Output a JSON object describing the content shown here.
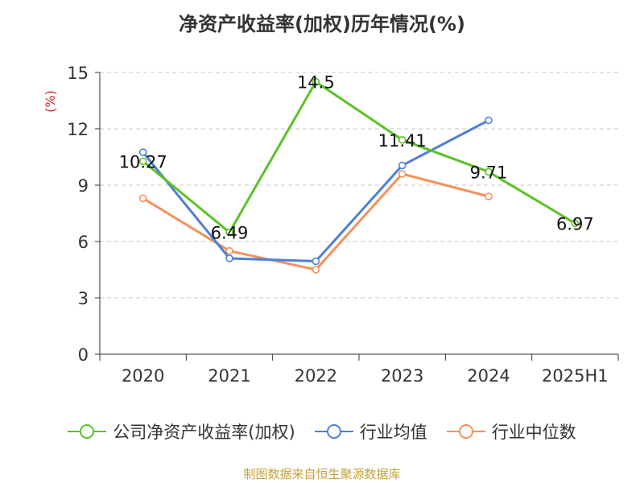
{
  "chart_data": {
    "type": "line",
    "title": "净资产收益率(加权)历年情况(%)",
    "ylabel": "(%)",
    "xlabel": "",
    "categories": [
      "2020",
      "2021",
      "2022",
      "2023",
      "2024",
      "2025H1"
    ],
    "yticks": [
      "0",
      "3",
      "6",
      "9",
      "12",
      "15"
    ],
    "ylim": [
      0,
      15
    ],
    "grid": true,
    "legend_position": "bottom",
    "series": [
      {
        "name": "公司净资产收益率(加权)",
        "color": "#5cc227",
        "values": [
          10.27,
          6.49,
          14.5,
          11.41,
          9.71,
          6.97
        ],
        "labels": [
          "10.27",
          "6.49",
          "14.5",
          "11.41",
          "9.71",
          "6.97"
        ]
      },
      {
        "name": "行业均值",
        "color": "#4f7fd8",
        "values": [
          10.75,
          5.1,
          4.95,
          10.05,
          12.45,
          null
        ]
      },
      {
        "name": "行业中位数",
        "color": "#f5905a",
        "values": [
          8.3,
          5.5,
          4.5,
          9.6,
          8.4,
          null
        ]
      }
    ]
  },
  "source_note": "制图数据来自恒生聚源数据库"
}
